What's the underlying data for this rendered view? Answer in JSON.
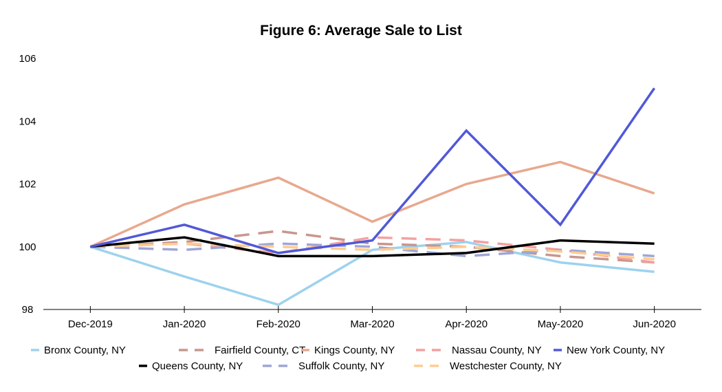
{
  "chart_data": {
    "type": "line",
    "title": "Figure 6: Average Sale to List",
    "xlabel": "",
    "ylabel": "",
    "categories": [
      "Dec-2019",
      "Jan-2020",
      "Feb-2020",
      "Mar-2020",
      "Apr-2020",
      "May-2020",
      "Jun-2020"
    ],
    "ylim": [
      98,
      106
    ],
    "yticks": [
      98,
      100,
      102,
      104,
      106
    ],
    "grid": false,
    "legend_position": "bottom",
    "series": [
      {
        "name": "Bronx County, NY",
        "color": "#9dd2ee",
        "dash": "solid",
        "values": [
          100.0,
          99.05,
          98.15,
          99.9,
          100.15,
          99.5,
          99.2
        ]
      },
      {
        "name": "Fairfield County, CT",
        "color": "#c8968e",
        "dash": "dashed",
        "values": [
          100.0,
          100.15,
          100.5,
          100.1,
          100.0,
          99.7,
          99.5
        ]
      },
      {
        "name": "Kings County, NY",
        "color": "#e8a88e",
        "dash": "solid",
        "values": [
          100.0,
          101.35,
          102.2,
          100.8,
          102.0,
          102.7,
          101.7
        ]
      },
      {
        "name": "Nassau County, NY",
        "color": "#f4a0a0",
        "dash": "dashed",
        "values": [
          100.0,
          100.1,
          99.8,
          100.3,
          100.2,
          99.9,
          99.5
        ]
      },
      {
        "name": "New York County, NY",
        "color": "#5058d8",
        "dash": "solid",
        "values": [
          100.0,
          100.7,
          99.8,
          100.2,
          103.7,
          100.7,
          105.05
        ]
      },
      {
        "name": "Queens County, NY",
        "color": "#000000",
        "dash": "solid",
        "values": [
          100.0,
          100.3,
          99.7,
          99.7,
          99.8,
          100.2,
          100.1
        ]
      },
      {
        "name": "Suffolk County, NY",
        "color": "#9ea6d8",
        "dash": "dashed",
        "values": [
          100.0,
          99.9,
          100.1,
          100.0,
          99.7,
          99.9,
          99.7
        ]
      },
      {
        "name": "Westchester County, NY",
        "color": "#ffcc90",
        "dash": "dashed",
        "values": [
          100.0,
          100.1,
          100.0,
          99.9,
          100.0,
          99.85,
          99.6
        ]
      }
    ]
  }
}
